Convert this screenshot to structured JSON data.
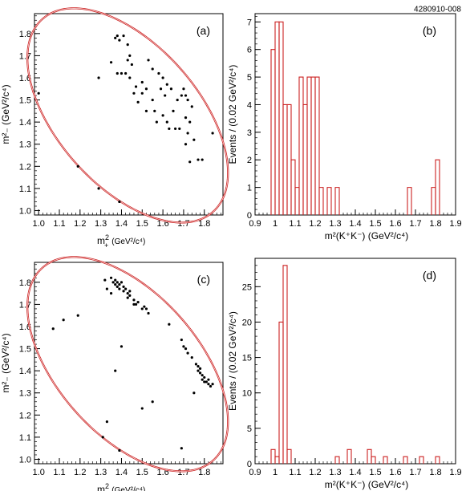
{
  "figure_id": "4280910-008",
  "chart_data": [
    {
      "panel": "(a)",
      "type": "scatter",
      "xlabel_main": "m",
      "xlabel_sub": "+",
      "xlabel_unit": "(GeV²/c⁴)",
      "ylabel": "m²₋ (GeV²/c⁴)",
      "xlim": [
        0.98,
        1.89
      ],
      "ylim": [
        0.98,
        1.89
      ],
      "xticks": [
        "1.0",
        "1.1",
        "1.2",
        "1.3",
        "1.4",
        "1.5",
        "1.6",
        "1.7",
        "1.8"
      ],
      "yticks": [
        "1.0",
        "1.1",
        "1.2",
        "1.3",
        "1.4",
        "1.5",
        "1.6",
        "1.7",
        "1.8"
      ],
      "boundary": {
        "type": "ellipse",
        "color": "#cc2222",
        "center": [
          1.43,
          1.43
        ],
        "semi_major": 0.6,
        "semi_minor": 0.33,
        "angle_deg": -45
      },
      "points": [
        [
          1.0,
          1.53
        ],
        [
          1.19,
          1.2
        ],
        [
          1.29,
          1.1
        ],
        [
          1.29,
          1.6
        ],
        [
          1.35,
          1.67
        ],
        [
          1.37,
          1.78
        ],
        [
          1.38,
          1.79
        ],
        [
          1.39,
          1.77
        ],
        [
          1.41,
          1.79
        ],
        [
          1.43,
          1.75
        ],
        [
          1.44,
          1.7
        ],
        [
          1.38,
          1.62
        ],
        [
          1.4,
          1.62
        ],
        [
          1.42,
          1.62
        ],
        [
          1.43,
          1.68
        ],
        [
          1.45,
          1.66
        ],
        [
          1.44,
          1.6
        ],
        [
          1.47,
          1.56
        ],
        [
          1.5,
          1.58
        ],
        [
          1.52,
          1.55
        ],
        [
          1.53,
          1.68
        ],
        [
          1.55,
          1.64
        ],
        [
          1.58,
          1.62
        ],
        [
          1.6,
          1.6
        ],
        [
          1.62,
          1.57
        ],
        [
          1.46,
          1.53
        ],
        [
          1.48,
          1.49
        ],
        [
          1.5,
          1.53
        ],
        [
          1.55,
          1.5
        ],
        [
          1.56,
          1.45
        ],
        [
          1.52,
          1.45
        ],
        [
          1.57,
          1.4
        ],
        [
          1.6,
          1.43
        ],
        [
          1.62,
          1.4
        ],
        [
          1.65,
          1.45
        ],
        [
          1.67,
          1.5
        ],
        [
          1.69,
          1.52
        ],
        [
          1.66,
          1.37
        ],
        [
          1.63,
          1.37
        ],
        [
          1.68,
          1.37
        ],
        [
          1.7,
          1.55
        ],
        [
          1.71,
          1.52
        ],
        [
          1.72,
          1.5
        ],
        [
          1.74,
          1.47
        ],
        [
          1.73,
          1.4
        ],
        [
          1.71,
          1.42
        ],
        [
          1.72,
          1.35
        ],
        [
          1.75,
          1.32
        ],
        [
          1.71,
          1.3
        ],
        [
          1.73,
          1.22
        ],
        [
          1.77,
          1.23
        ],
        [
          1.79,
          1.23
        ],
        [
          1.84,
          1.35
        ],
        [
          1.59,
          1.55
        ],
        [
          1.61,
          1.52
        ],
        [
          1.64,
          1.55
        ],
        [
          1.39,
          1.04
        ]
      ]
    },
    {
      "panel": "(b)",
      "type": "bar",
      "style": "step histogram",
      "xlabel": "m²(K⁺K⁻) (GeV²/c⁴)",
      "ylabel": "Events / (0.02 GeV²/c⁴)",
      "xlim": [
        0.9,
        1.9
      ],
      "ylim": [
        0,
        7.3
      ],
      "xticks": [
        "0.9",
        "1",
        "1.1",
        "1.2",
        "1.3",
        "1.4",
        "1.5",
        "1.6",
        "1.7",
        "1.8",
        "1.9"
      ],
      "yticks": [
        "0",
        "1",
        "2",
        "3",
        "4",
        "5",
        "6",
        "7"
      ],
      "bin_width": 0.02,
      "bins": [
        [
          0.98,
          1.0,
          6
        ],
        [
          1.0,
          1.02,
          7
        ],
        [
          1.02,
          1.04,
          7
        ],
        [
          1.04,
          1.06,
          4
        ],
        [
          1.06,
          1.08,
          4
        ],
        [
          1.08,
          1.1,
          2
        ],
        [
          1.1,
          1.12,
          1
        ],
        [
          1.12,
          1.14,
          5
        ],
        [
          1.14,
          1.16,
          4
        ],
        [
          1.16,
          1.18,
          5
        ],
        [
          1.18,
          1.2,
          5
        ],
        [
          1.2,
          1.22,
          5
        ],
        [
          1.22,
          1.24,
          1
        ],
        [
          1.26,
          1.28,
          1
        ],
        [
          1.3,
          1.32,
          1
        ],
        [
          1.66,
          1.68,
          1
        ],
        [
          1.78,
          1.8,
          1
        ],
        [
          1.8,
          1.82,
          2
        ]
      ],
      "color": "#cc2222"
    },
    {
      "panel": "(c)",
      "type": "scatter",
      "xlabel_main": "m",
      "xlabel_sub": "+",
      "xlabel_unit": "(GeV²/c⁴)",
      "ylabel": "m²₋ (GeV²/c⁴)",
      "xlim": [
        0.98,
        1.89
      ],
      "ylim": [
        0.98,
        1.89
      ],
      "xticks": [
        "1.0",
        "1.1",
        "1.2",
        "1.3",
        "1.4",
        "1.5",
        "1.6",
        "1.7",
        "1.8"
      ],
      "yticks": [
        "1.0",
        "1.1",
        "1.2",
        "1.3",
        "1.4",
        "1.5",
        "1.6",
        "1.7",
        "1.8"
      ],
      "boundary": {
        "type": "ellipse",
        "color": "#cc2222",
        "center": [
          1.43,
          1.43
        ],
        "semi_major": 0.6,
        "semi_minor": 0.33,
        "angle_deg": -45
      },
      "points": [
        [
          1.07,
          1.59
        ],
        [
          1.12,
          1.63
        ],
        [
          1.19,
          1.65
        ],
        [
          1.32,
          1.81
        ],
        [
          1.35,
          1.82
        ],
        [
          1.36,
          1.8
        ],
        [
          1.37,
          1.81
        ],
        [
          1.37,
          1.79
        ],
        [
          1.38,
          1.8
        ],
        [
          1.38,
          1.78
        ],
        [
          1.39,
          1.79
        ],
        [
          1.4,
          1.8
        ],
        [
          1.39,
          1.77
        ],
        [
          1.41,
          1.78
        ],
        [
          1.41,
          1.76
        ],
        [
          1.42,
          1.77
        ],
        [
          1.43,
          1.75
        ],
        [
          1.43,
          1.73
        ],
        [
          1.44,
          1.74
        ],
        [
          1.44,
          1.76
        ],
        [
          1.46,
          1.72
        ],
        [
          1.46,
          1.7
        ],
        [
          1.47,
          1.7
        ],
        [
          1.48,
          1.71
        ],
        [
          1.5,
          1.68
        ],
        [
          1.51,
          1.69
        ],
        [
          1.52,
          1.68
        ],
        [
          1.53,
          1.66
        ],
        [
          1.33,
          1.77
        ],
        [
          1.35,
          1.75
        ],
        [
          1.63,
          1.61
        ],
        [
          1.69,
          1.54
        ],
        [
          1.7,
          1.51
        ],
        [
          1.71,
          1.5
        ],
        [
          1.72,
          1.48
        ],
        [
          1.74,
          1.46
        ],
        [
          1.76,
          1.43
        ],
        [
          1.77,
          1.42
        ],
        [
          1.77,
          1.4
        ],
        [
          1.78,
          1.41
        ],
        [
          1.78,
          1.39
        ],
        [
          1.79,
          1.38
        ],
        [
          1.79,
          1.36
        ],
        [
          1.8,
          1.37
        ],
        [
          1.8,
          1.35
        ],
        [
          1.81,
          1.35
        ],
        [
          1.82,
          1.34
        ],
        [
          1.82,
          1.36
        ],
        [
          1.83,
          1.33
        ],
        [
          1.84,
          1.34
        ],
        [
          1.75,
          1.3
        ],
        [
          1.4,
          1.51
        ],
        [
          1.37,
          1.4
        ],
        [
          1.55,
          1.26
        ],
        [
          1.5,
          1.23
        ],
        [
          1.33,
          1.17
        ],
        [
          1.31,
          1.1
        ],
        [
          1.39,
          1.04
        ],
        [
          1.69,
          1.05
        ]
      ]
    },
    {
      "panel": "(d)",
      "type": "bar",
      "style": "step histogram",
      "xlabel": "m²(K⁺K⁻) (GeV²/c⁴)",
      "ylabel": "Events / (0.02 GeV²/c⁴)",
      "xlim": [
        0.9,
        1.9
      ],
      "ylim": [
        0,
        29
      ],
      "xticks": [
        "0.9",
        "1",
        "1.1",
        "1.2",
        "1.3",
        "1.4",
        "1.5",
        "1.6",
        "1.7",
        "1.8",
        "1.9"
      ],
      "yticks": [
        "0",
        "5",
        "10",
        "15",
        "20",
        "25"
      ],
      "bin_width": 0.02,
      "bins": [
        [
          0.98,
          1.0,
          2
        ],
        [
          1.0,
          1.02,
          1
        ],
        [
          1.02,
          1.04,
          20
        ],
        [
          1.04,
          1.06,
          28
        ],
        [
          1.06,
          1.08,
          2
        ],
        [
          1.3,
          1.32,
          1
        ],
        [
          1.36,
          1.38,
          2
        ],
        [
          1.46,
          1.48,
          2
        ],
        [
          1.48,
          1.5,
          1
        ],
        [
          1.54,
          1.56,
          1
        ],
        [
          1.64,
          1.66,
          1
        ],
        [
          1.72,
          1.74,
          1
        ],
        [
          1.8,
          1.82,
          1
        ]
      ],
      "color": "#cc2222"
    }
  ]
}
